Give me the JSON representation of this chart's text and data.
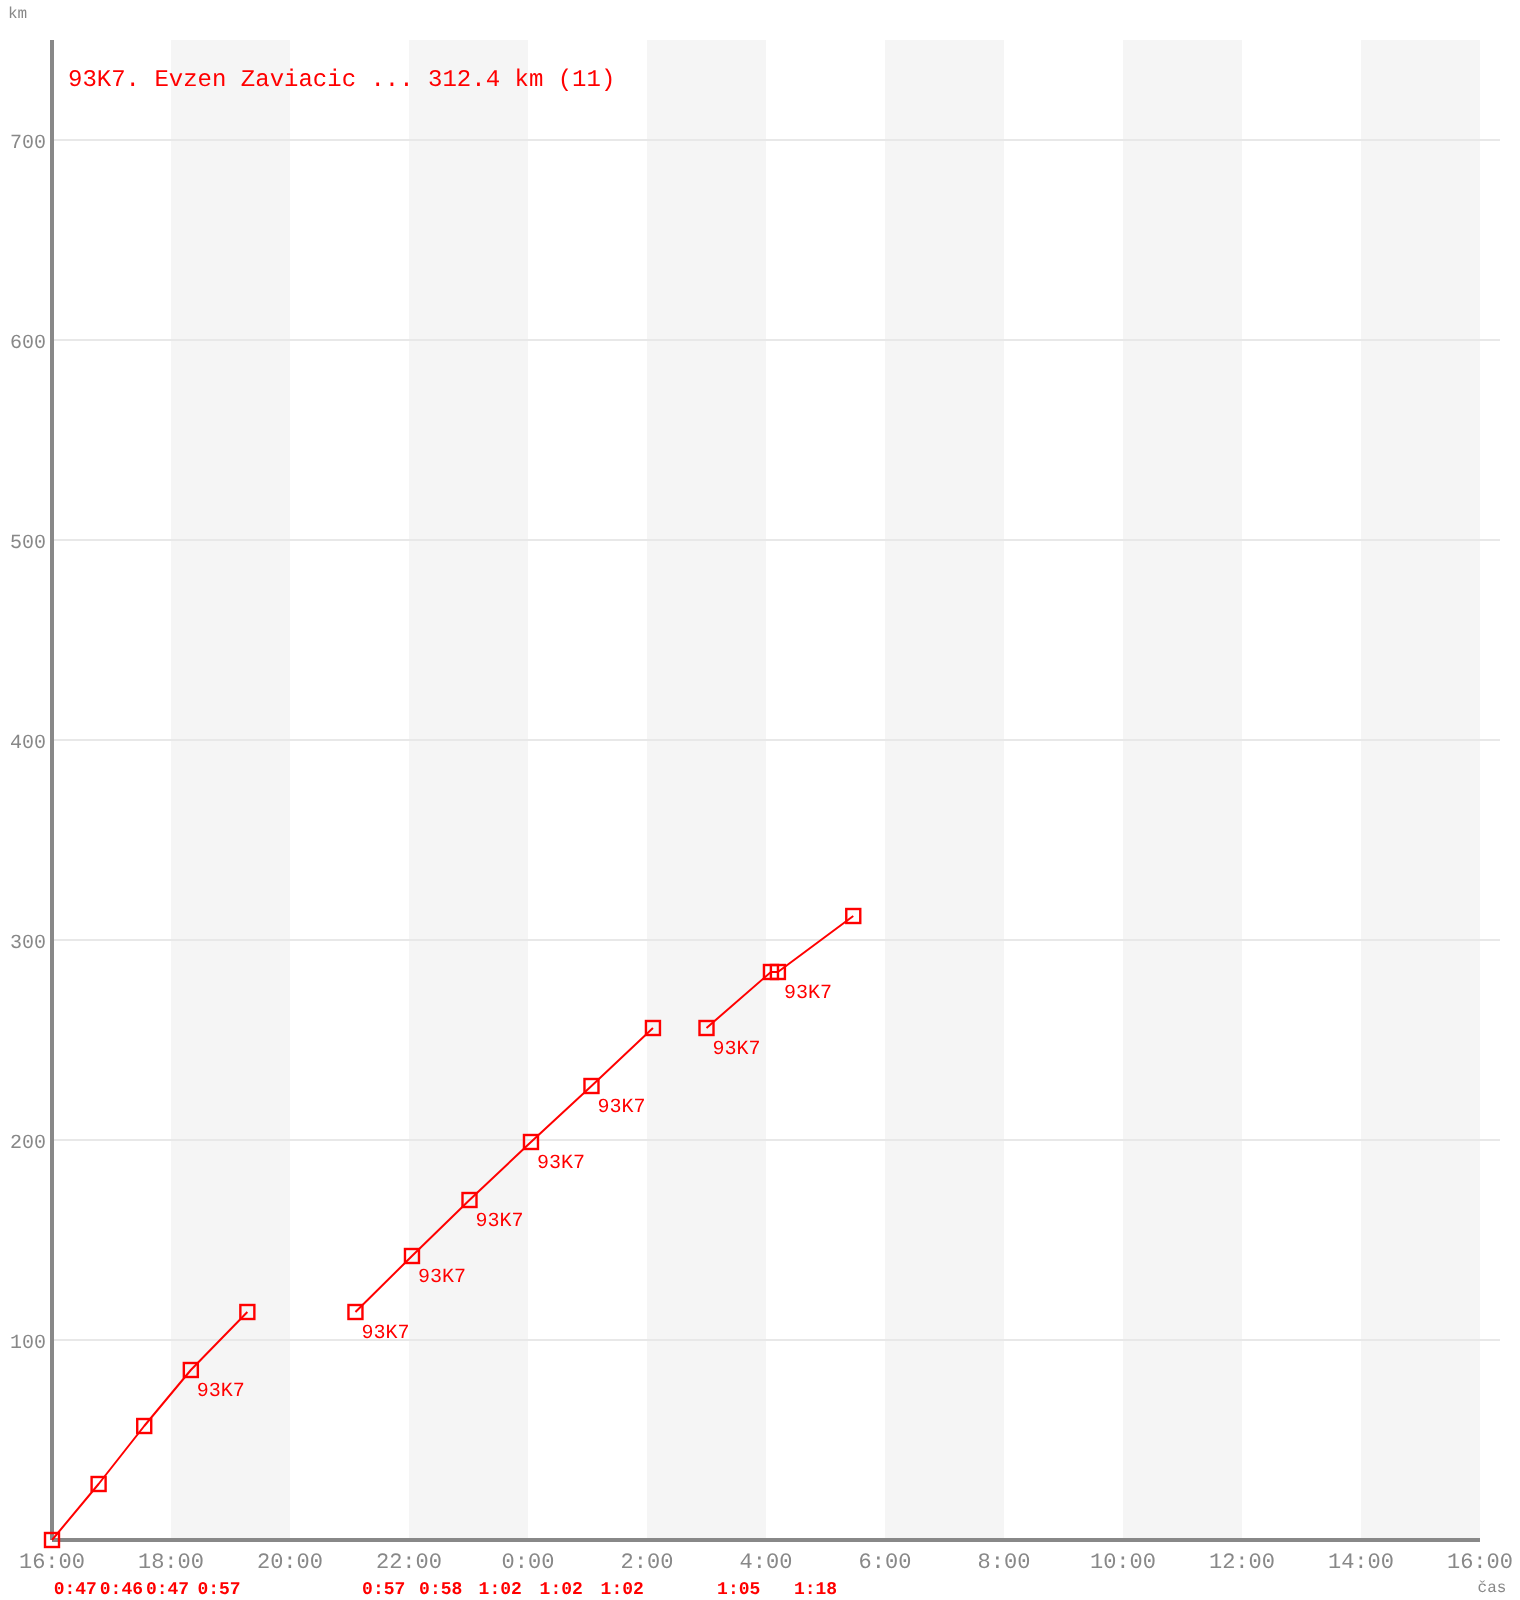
{
  "chart_data": {
    "type": "line",
    "title": "93K7. Evzen Zaviacic ... 312.4 km (11)",
    "xlabel": "čas",
    "ylabel": "km",
    "series": [
      {
        "color": "#ff0000",
        "x": [
          "2000-01-01T16:00",
          "2000-01-01T16:47",
          "2000-01-01T17:33",
          "2000-01-01T18:20",
          "2000-01-01T19:17"
        ],
        "values": [
          0,
          28,
          57,
          85,
          114
        ]
      },
      {
        "color": "#ff0000",
        "x": [
          "2000-01-01T21:06",
          "2000-01-01T22:03",
          "2000-01-01T23:01",
          "2000-01-02T00:03",
          "2000-01-02T01:04",
          "2000-01-02T02:06"
        ],
        "values": [
          114,
          142,
          170,
          199,
          227,
          256
        ]
      },
      {
        "color": "#ff0000",
        "x": [
          "2000-01-02T03:00",
          "2000-01-02T04:05",
          "2000-01-02T04:12",
          "2000-01-02T05:28"
        ],
        "values": [
          256,
          284,
          284,
          312
        ]
      }
    ],
    "xlim": [
      "2000-01-01T16:00",
      "2000-01-02T16:00"
    ],
    "xticks": [
      {
        "value": "2000-01-01T16:00",
        "label": "16:00"
      },
      {
        "value": "2000-01-01T18:00",
        "label": "18:00"
      },
      {
        "value": "2000-01-01T20:00",
        "label": "20:00"
      },
      {
        "value": "2000-01-01T22:00",
        "label": "22:00"
      },
      {
        "value": "2000-01-02T00:00",
        "label": "0:00"
      },
      {
        "value": "2000-01-02T02:00",
        "label": "2:00"
      },
      {
        "value": "2000-01-02T04:00",
        "label": "4:00"
      },
      {
        "value": "2000-01-02T06:00",
        "label": "6:00"
      },
      {
        "value": "2000-01-02T08:00",
        "label": "8:00"
      },
      {
        "value": "2000-01-02T10:00",
        "label": "10:00"
      },
      {
        "value": "2000-01-02T12:00",
        "label": "12:00"
      },
      {
        "value": "2000-01-02T14:00",
        "label": "14:00"
      },
      {
        "value": "2000-01-02T16:00",
        "label": "16:00"
      }
    ],
    "ylim": [
      0,
      750
    ],
    "yticks": [
      100,
      200,
      300,
      400,
      500,
      600,
      700
    ],
    "bands": [
      {
        "axis": "x",
        "from": "2000-01-01T18:00",
        "to": "2000-01-01T20:00",
        "color": "#f5f5f5"
      },
      {
        "axis": "x",
        "from": "2000-01-01T22:00",
        "to": "2000-01-02T00:00",
        "color": "#f5f5f5"
      },
      {
        "axis": "x",
        "from": "2000-01-02T02:00",
        "to": "2000-01-02T04:00",
        "color": "#f5f5f5"
      },
      {
        "axis": "x",
        "from": "2000-01-02T06:00",
        "to": "2000-01-02T08:00",
        "color": "#f5f5f5"
      },
      {
        "axis": "x",
        "from": "2000-01-02T10:00",
        "to": "2000-01-02T12:00",
        "color": "#f5f5f5"
      },
      {
        "axis": "x",
        "from": "2000-01-02T14:00",
        "to": "2000-01-02T16:00",
        "color": "#f5f5f5"
      }
    ],
    "grid": "y",
    "marker": "square",
    "line_style": "solid",
    "annotations": [
      {
        "text": "93K7",
        "x": "2000-01-01T18:20",
        "y": 85
      },
      {
        "text": "93K7",
        "x": "2000-01-01T21:06",
        "y": 114
      },
      {
        "text": "93K7",
        "x": "2000-01-01T22:03",
        "y": 142
      },
      {
        "text": "93K7",
        "x": "2000-01-01T23:01",
        "y": 170
      },
      {
        "text": "93K7",
        "x": "2000-01-02T00:03",
        "y": 199
      },
      {
        "text": "93K7",
        "x": "2000-01-02T01:04",
        "y": 227
      },
      {
        "text": "93K7",
        "x": "2000-01-02T03:00",
        "y": 256
      },
      {
        "text": "93K7",
        "x": "2000-01-02T04:12",
        "y": 284
      },
      "0:47",
      "0:46",
      "0:47",
      "0:57",
      "0:57",
      "0:58",
      "1:02",
      "1:02",
      "1:02",
      "1:05",
      "1:18"
    ]
  }
}
